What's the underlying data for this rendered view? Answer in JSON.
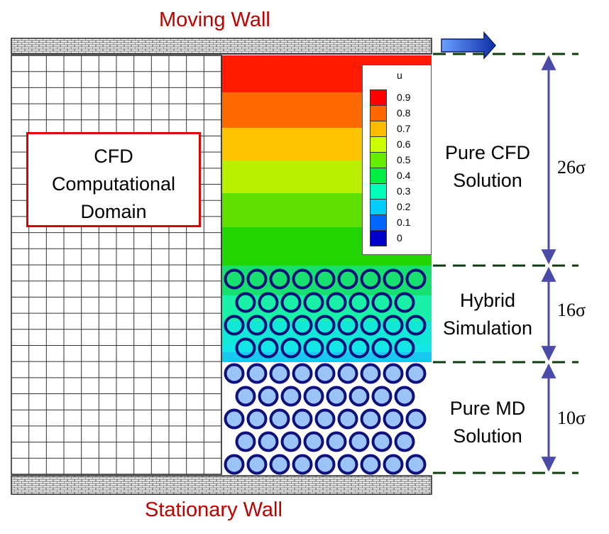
{
  "walls": {
    "moving": "Moving Wall",
    "stationary": "Stationary Wall"
  },
  "cfd_box": {
    "line1": "CFD",
    "line2": "Computational",
    "line3": "Domain"
  },
  "regions": [
    {
      "line1": "Pure CFD",
      "line2": "Solution",
      "size": "26σ"
    },
    {
      "line1": "Hybrid",
      "line2": "Simulation",
      "size": "16σ"
    },
    {
      "line1": "Pure MD",
      "line2": "Solution",
      "size": "10σ"
    }
  ],
  "legend": {
    "title": "u",
    "ticks": [
      "0.9",
      "0.8",
      "0.7",
      "0.6",
      "0.5",
      "0.4",
      "0.3",
      "0.2",
      "0.1",
      "0"
    ],
    "colors": [
      "#ff0000",
      "#ff6600",
      "#ffbb00",
      "#ccff00",
      "#66ee00",
      "#00ee44",
      "#00ffbb",
      "#00ccff",
      "#0066ff",
      "#0000cc"
    ]
  },
  "band_colors": [
    "#ff1a00",
    "#ff6a00",
    "#ffc400",
    "#b8f000",
    "#5fe000",
    "#22d400",
    "#16e070",
    "#19f0a8",
    "#11e8d8",
    "#13e6e6",
    "#19c8f0"
  ],
  "colors": {
    "wall_title": "#c00000",
    "molecule_fill": "#9cc3f5",
    "molecule_stroke": "#10107a",
    "dim_arrow": "#4a4aa8",
    "dash_line": "#0d3d0d",
    "arrow_blue": "#1f4fe0"
  }
}
